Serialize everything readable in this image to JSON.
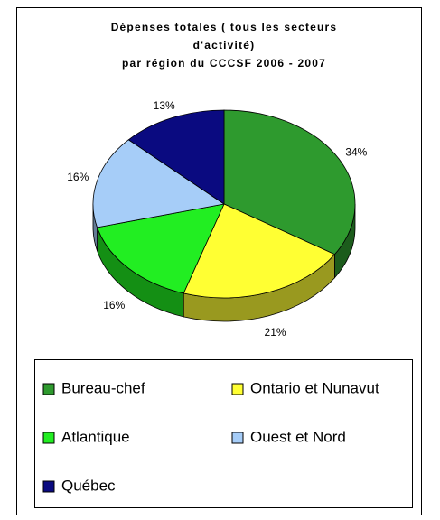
{
  "chart_data": {
    "type": "pie3d",
    "title": [
      "Dépenses totales ( tous les secteurs",
      "d'activité)",
      "par région du CCCSF 2006 - 2007"
    ],
    "categories": [
      "Bureau-chef",
      "Ontario et Nunavut",
      "Atlantique",
      "Ouest et Nord",
      "Québec"
    ],
    "values": [
      34,
      21,
      16,
      16,
      13
    ],
    "value_labels": [
      "34%",
      "21%",
      "16%",
      "16%",
      "13%"
    ],
    "colors": [
      "#2e9a2e",
      "#ffff33",
      "#22ee22",
      "#a6cdf8",
      "#0a0a80"
    ],
    "legend": "bottom"
  }
}
